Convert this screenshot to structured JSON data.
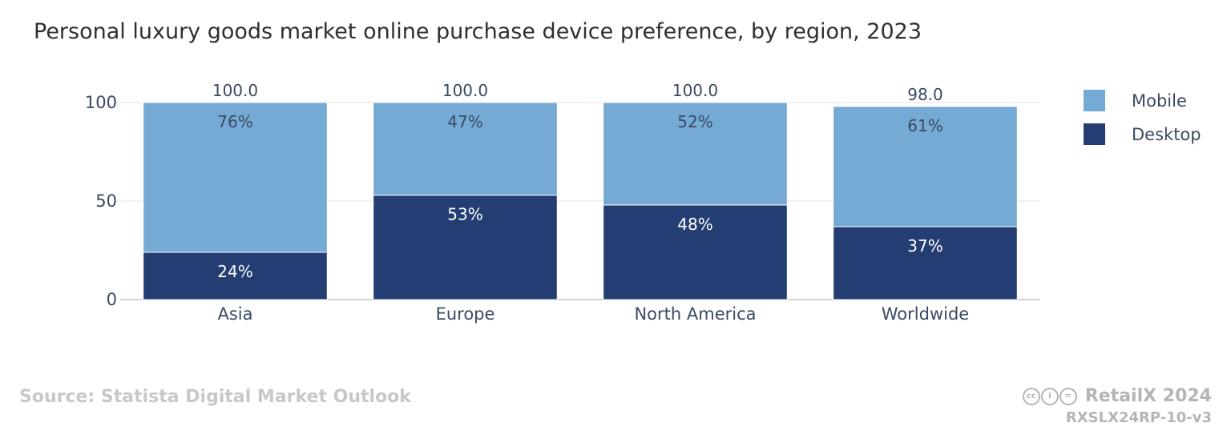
{
  "title": "Personal luxury goods market online purchase device preference, by region, 2023",
  "source": "Source: Statista Digital Market Outlook",
  "brand": "RetailX 2024",
  "ref_code": "RXSLX24RP-10-v3",
  "cc_icons": [
    "cc",
    "by",
    "nd"
  ],
  "chart_data": {
    "type": "bar",
    "stacked": true,
    "categories": [
      "Asia",
      "Europe",
      "North America",
      "Worldwide"
    ],
    "series": [
      {
        "name": "Desktop",
        "values": [
          24,
          53,
          48,
          37
        ],
        "labels": [
          "24%",
          "53%",
          "48%",
          "37%"
        ],
        "color": "#243e73",
        "label_color": "#ffffff"
      },
      {
        "name": "Mobile",
        "values": [
          76,
          47,
          52,
          61
        ],
        "labels": [
          "76%",
          "47%",
          "52%",
          "61%"
        ],
        "color": "#74aad3",
        "label_color": "#3a4a63"
      }
    ],
    "totals": [
      "100.0",
      "100.0",
      "100.0",
      "98.0"
    ],
    "ylim": [
      0,
      100
    ],
    "yticks": [
      0,
      50,
      100
    ],
    "grid": true,
    "legend": "right",
    "legend_order": [
      "Mobile",
      "Desktop"
    ]
  }
}
